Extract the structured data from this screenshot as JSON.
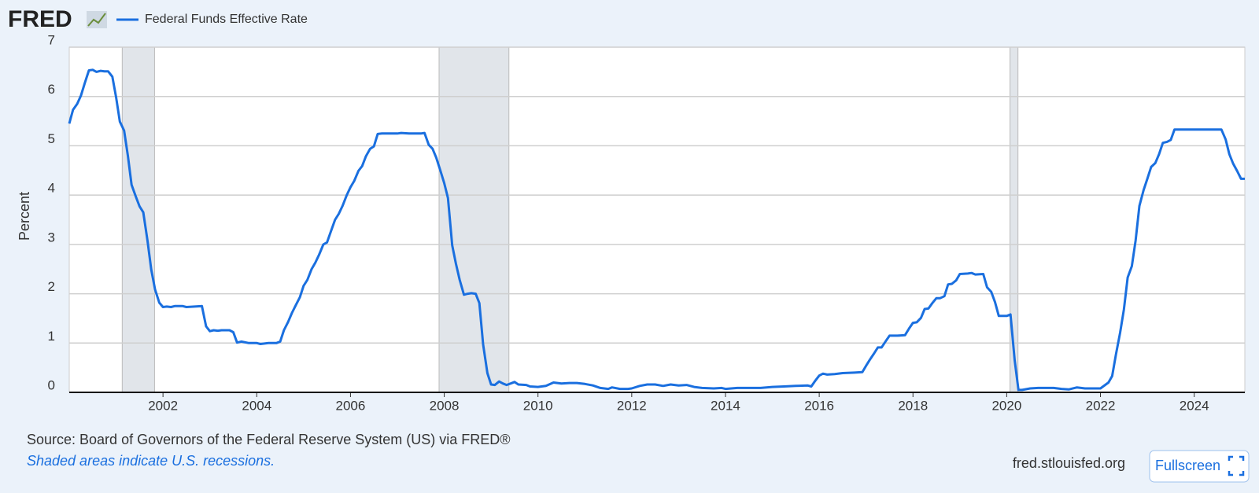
{
  "logo": "FRED",
  "source": "Source: Board of Governors of the Federal Reserve System (US) via FRED®",
  "note": "Shaded areas indicate U.S. recessions.",
  "site": "fred.stlouisfed.org",
  "button": "Fullscreen",
  "chart_data": {
    "type": "line",
    "y_label": "Percent",
    "x": [
      2000.0,
      2000.08,
      2000.17,
      2000.25,
      2000.33,
      2000.42,
      2000.5,
      2000.58,
      2000.67,
      2000.75,
      2000.83,
      2000.92,
      2001.0,
      2001.08,
      2001.17,
      2001.25,
      2001.33,
      2001.42,
      2001.5,
      2001.58,
      2001.67,
      2001.75,
      2001.83,
      2001.92,
      2002.0,
      2002.08,
      2002.17,
      2002.25,
      2002.42,
      2002.5,
      2002.67,
      2002.83,
      2002.92,
      2003.0,
      2003.08,
      2003.17,
      2003.25,
      2003.42,
      2003.5,
      2003.58,
      2003.67,
      2003.83,
      2004.0,
      2004.08,
      2004.25,
      2004.42,
      2004.5,
      2004.58,
      2004.67,
      2004.75,
      2004.83,
      2004.92,
      2005.0,
      2005.08,
      2005.17,
      2005.25,
      2005.33,
      2005.42,
      2005.5,
      2005.58,
      2005.67,
      2005.75,
      2005.83,
      2005.92,
      2006.0,
      2006.08,
      2006.17,
      2006.25,
      2006.33,
      2006.42,
      2006.5,
      2006.58,
      2006.67,
      2006.83,
      2007.0,
      2007.08,
      2007.25,
      2007.5,
      2007.58,
      2007.67,
      2007.75,
      2007.83,
      2007.92,
      2008.0,
      2008.08,
      2008.17,
      2008.25,
      2008.33,
      2008.42,
      2008.5,
      2008.58,
      2008.67,
      2008.75,
      2008.83,
      2008.92,
      2009.0,
      2009.08,
      2009.17,
      2009.25,
      2009.33,
      2009.42,
      2009.5,
      2009.58,
      2009.75,
      2009.83,
      2010.0,
      2010.17,
      2010.33,
      2010.5,
      2010.67,
      2010.83,
      2011.0,
      2011.17,
      2011.33,
      2011.5,
      2011.58,
      2011.75,
      2011.92,
      2012.0,
      2012.17,
      2012.33,
      2012.5,
      2012.67,
      2012.83,
      2013.0,
      2013.17,
      2013.33,
      2013.5,
      2013.75,
      2013.92,
      2014.0,
      2014.25,
      2014.5,
      2014.75,
      2015.0,
      2015.25,
      2015.5,
      2015.75,
      2015.83,
      2015.92,
      2016.0,
      2016.08,
      2016.17,
      2016.33,
      2016.5,
      2016.75,
      2016.92,
      2017.0,
      2017.08,
      2017.17,
      2017.25,
      2017.33,
      2017.42,
      2017.5,
      2017.67,
      2017.83,
      2017.92,
      2018.0,
      2018.08,
      2018.17,
      2018.25,
      2018.33,
      2018.42,
      2018.5,
      2018.58,
      2018.67,
      2018.75,
      2018.83,
      2018.92,
      2019.0,
      2019.17,
      2019.25,
      2019.33,
      2019.5,
      2019.58,
      2019.67,
      2019.75,
      2019.83,
      2019.92,
      2020.0,
      2020.08,
      2020.17,
      2020.25,
      2020.33,
      2020.5,
      2020.67,
      2021.0,
      2021.17,
      2021.33,
      2021.5,
      2021.67,
      2022.0,
      2022.17,
      2022.25,
      2022.33,
      2022.42,
      2022.5,
      2022.58,
      2022.67,
      2022.75,
      2022.83,
      2022.92,
      2023.0,
      2023.08,
      2023.17,
      2023.25,
      2023.33,
      2023.42,
      2023.5,
      2023.58,
      2024.58,
      2024.67,
      2024.75,
      2024.83,
      2024.92,
      2025.0,
      2025.08
    ],
    "series": [
      {
        "name": "Federal Funds Effective Rate",
        "color": "#1a6fdf",
        "values": [
          5.45,
          5.73,
          5.85,
          6.02,
          6.27,
          6.53,
          6.54,
          6.5,
          6.52,
          6.51,
          6.51,
          6.4,
          5.98,
          5.49,
          5.31,
          4.8,
          4.21,
          3.97,
          3.77,
          3.65,
          3.07,
          2.49,
          2.09,
          1.82,
          1.73,
          1.74,
          1.73,
          1.75,
          1.75,
          1.73,
          1.74,
          1.75,
          1.34,
          1.24,
          1.26,
          1.25,
          1.26,
          1.26,
          1.22,
          1.01,
          1.03,
          1.0,
          1.0,
          0.98,
          1.0,
          1.0,
          1.03,
          1.26,
          1.43,
          1.61,
          1.76,
          1.93,
          2.16,
          2.28,
          2.5,
          2.63,
          2.79,
          3.0,
          3.04,
          3.26,
          3.5,
          3.62,
          3.78,
          4.0,
          4.16,
          4.29,
          4.49,
          4.59,
          4.79,
          4.94,
          4.99,
          5.24,
          5.25,
          5.25,
          5.25,
          5.26,
          5.25,
          5.25,
          5.26,
          5.02,
          4.94,
          4.76,
          4.49,
          4.24,
          3.94,
          2.98,
          2.61,
          2.28,
          1.98,
          2.0,
          2.01,
          2.0,
          1.81,
          0.97,
          0.39,
          0.16,
          0.15,
          0.22,
          0.18,
          0.15,
          0.18,
          0.21,
          0.16,
          0.15,
          0.12,
          0.11,
          0.13,
          0.2,
          0.18,
          0.19,
          0.19,
          0.17,
          0.14,
          0.09,
          0.07,
          0.1,
          0.07,
          0.07,
          0.08,
          0.13,
          0.16,
          0.16,
          0.13,
          0.16,
          0.14,
          0.15,
          0.11,
          0.09,
          0.08,
          0.09,
          0.07,
          0.09,
          0.09,
          0.09,
          0.11,
          0.12,
          0.13,
          0.14,
          0.12,
          0.24,
          0.34,
          0.38,
          0.36,
          0.37,
          0.39,
          0.4,
          0.41,
          0.54,
          0.66,
          0.79,
          0.91,
          0.91,
          1.04,
          1.15,
          1.15,
          1.16,
          1.3,
          1.41,
          1.42,
          1.51,
          1.69,
          1.7,
          1.82,
          1.91,
          1.91,
          1.95,
          2.19,
          2.2,
          2.27,
          2.4,
          2.41,
          2.42,
          2.39,
          2.4,
          2.13,
          2.04,
          1.83,
          1.55,
          1.55,
          1.55,
          1.58,
          0.65,
          0.05,
          0.05,
          0.08,
          0.09,
          0.09,
          0.07,
          0.06,
          0.1,
          0.08,
          0.08,
          0.2,
          0.33,
          0.77,
          1.21,
          1.68,
          2.33,
          2.56,
          3.08,
          3.78,
          4.1,
          4.33,
          4.57,
          4.65,
          4.83,
          5.06,
          5.08,
          5.12,
          5.33,
          5.33,
          5.13,
          4.83,
          4.64,
          4.48,
          4.33,
          4.33
        ]
      }
    ],
    "recessions": [
      {
        "start": 2001.13,
        "end": 2001.82
      },
      {
        "start": 2007.89,
        "end": 2009.38
      },
      {
        "start": 2020.07,
        "end": 2020.24
      }
    ],
    "recession_color": "#e1e5ea",
    "xlim": [
      2000.0,
      2025.08
    ],
    "xticks": [
      2002,
      2004,
      2006,
      2008,
      2010,
      2012,
      2014,
      2016,
      2018,
      2020,
      2022,
      2024
    ],
    "ylim": [
      0,
      7
    ],
    "yticks": [
      0,
      1,
      2,
      3,
      4,
      5,
      6,
      7
    ],
    "grid": true
  }
}
